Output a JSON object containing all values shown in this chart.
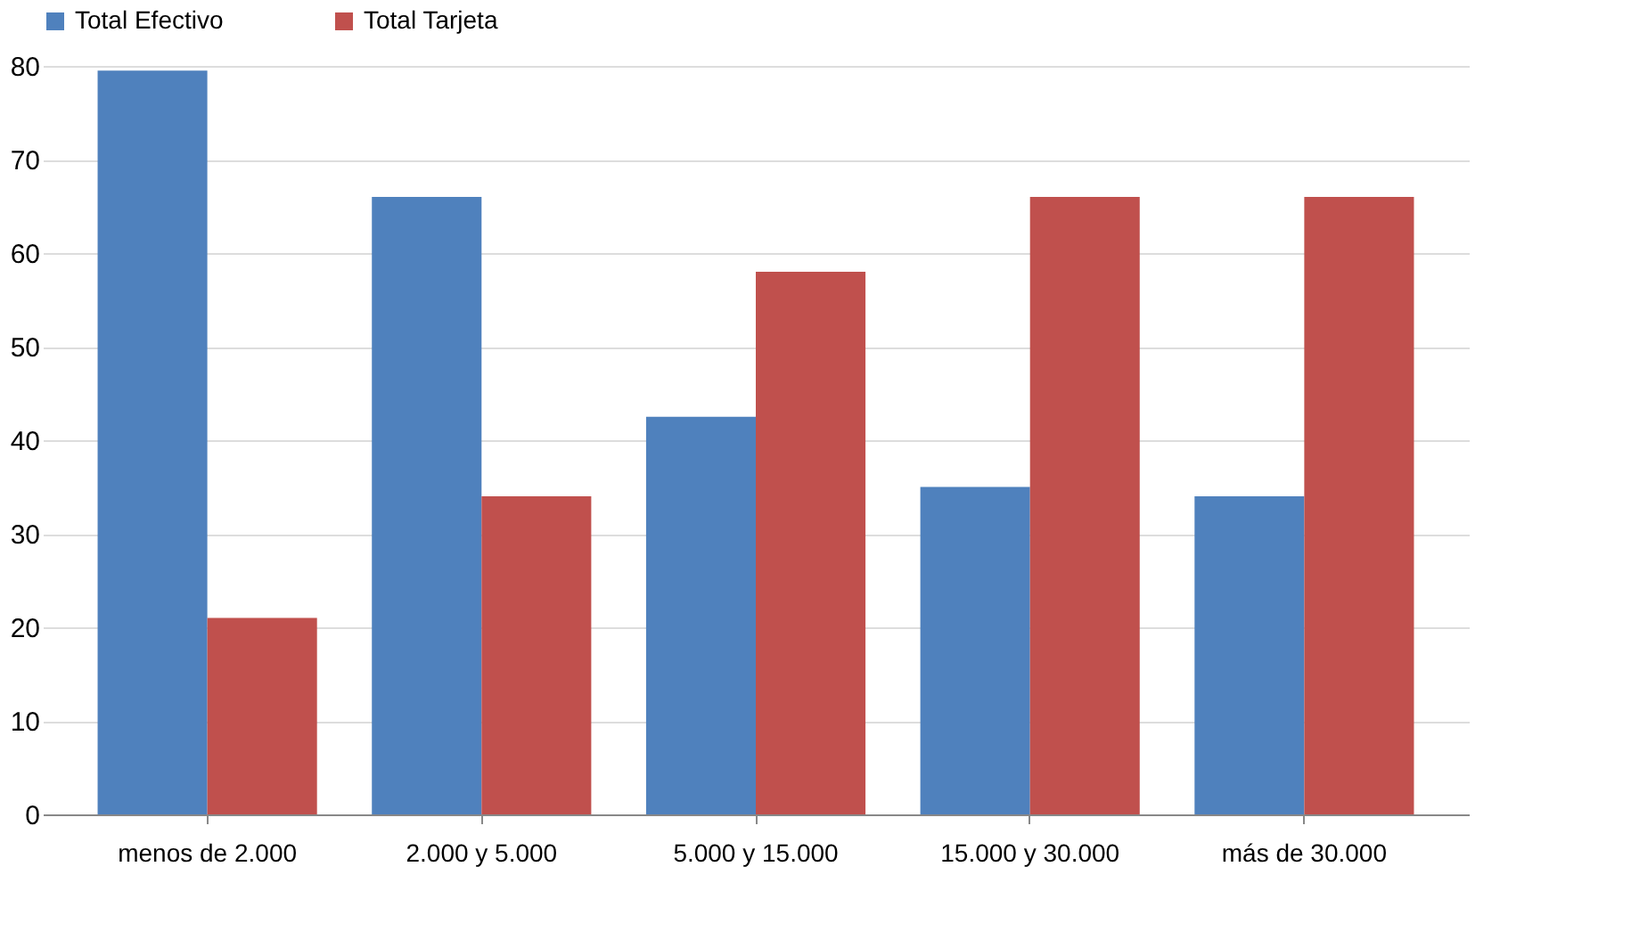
{
  "chart_data": {
    "type": "bar",
    "categories": [
      "menos de 2.000",
      "2.000 y 5.000",
      "5.000 y 15.000",
      "15.000 y 30.000",
      "más de 30.000"
    ],
    "series": [
      {
        "name": "Total Efectivo",
        "color": "#4f81bd",
        "values": [
          79.5,
          66,
          42.5,
          35,
          34
        ]
      },
      {
        "name": "Total Tarjeta",
        "color": "#c0504d",
        "values": [
          21,
          34,
          58,
          66,
          66
        ]
      }
    ],
    "ylim": [
      0,
      80
    ],
    "yticks": [
      0,
      10,
      20,
      30,
      40,
      50,
      60,
      70,
      80
    ],
    "grid": "y",
    "legend": "top"
  }
}
